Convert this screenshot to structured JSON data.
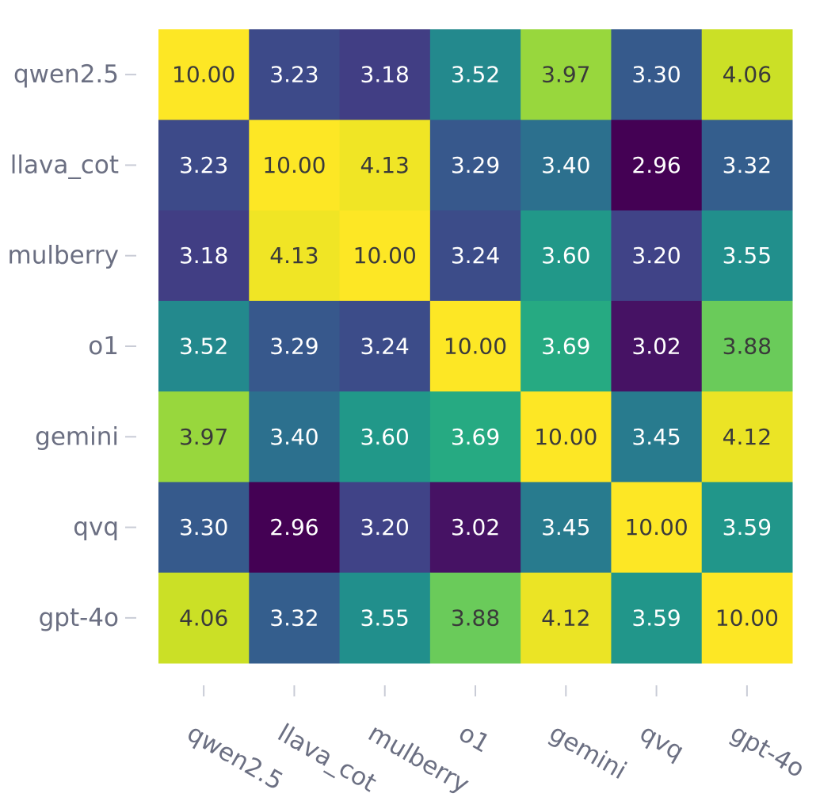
{
  "chart_data": {
    "type": "heatmap",
    "title": "",
    "xlabel": "",
    "ylabel": "",
    "colormap": "viridis",
    "value_format": "2 decimals",
    "x_categories": [
      "qwen2.5",
      "llava_cot",
      "mulberry",
      "o1",
      "gemini",
      "qvq",
      "gpt-4o"
    ],
    "y_categories": [
      "qwen2.5",
      "llava_cot",
      "mulberry",
      "o1",
      "gemini",
      "qvq",
      "gpt-4o"
    ],
    "values": [
      [
        10.0,
        3.23,
        3.18,
        3.52,
        3.97,
        3.3,
        4.06
      ],
      [
        3.23,
        10.0,
        4.13,
        3.29,
        3.4,
        2.96,
        3.32
      ],
      [
        3.18,
        4.13,
        10.0,
        3.24,
        3.6,
        3.2,
        3.55
      ],
      [
        3.52,
        3.29,
        3.24,
        10.0,
        3.69,
        3.02,
        3.88
      ],
      [
        3.97,
        3.4,
        3.6,
        3.69,
        10.0,
        3.45,
        4.12
      ],
      [
        3.3,
        2.96,
        3.2,
        3.02,
        3.45,
        10.0,
        3.59
      ],
      [
        4.06,
        3.32,
        3.55,
        3.88,
        4.12,
        3.59,
        10.0
      ]
    ],
    "grid": false,
    "legend": "none"
  }
}
